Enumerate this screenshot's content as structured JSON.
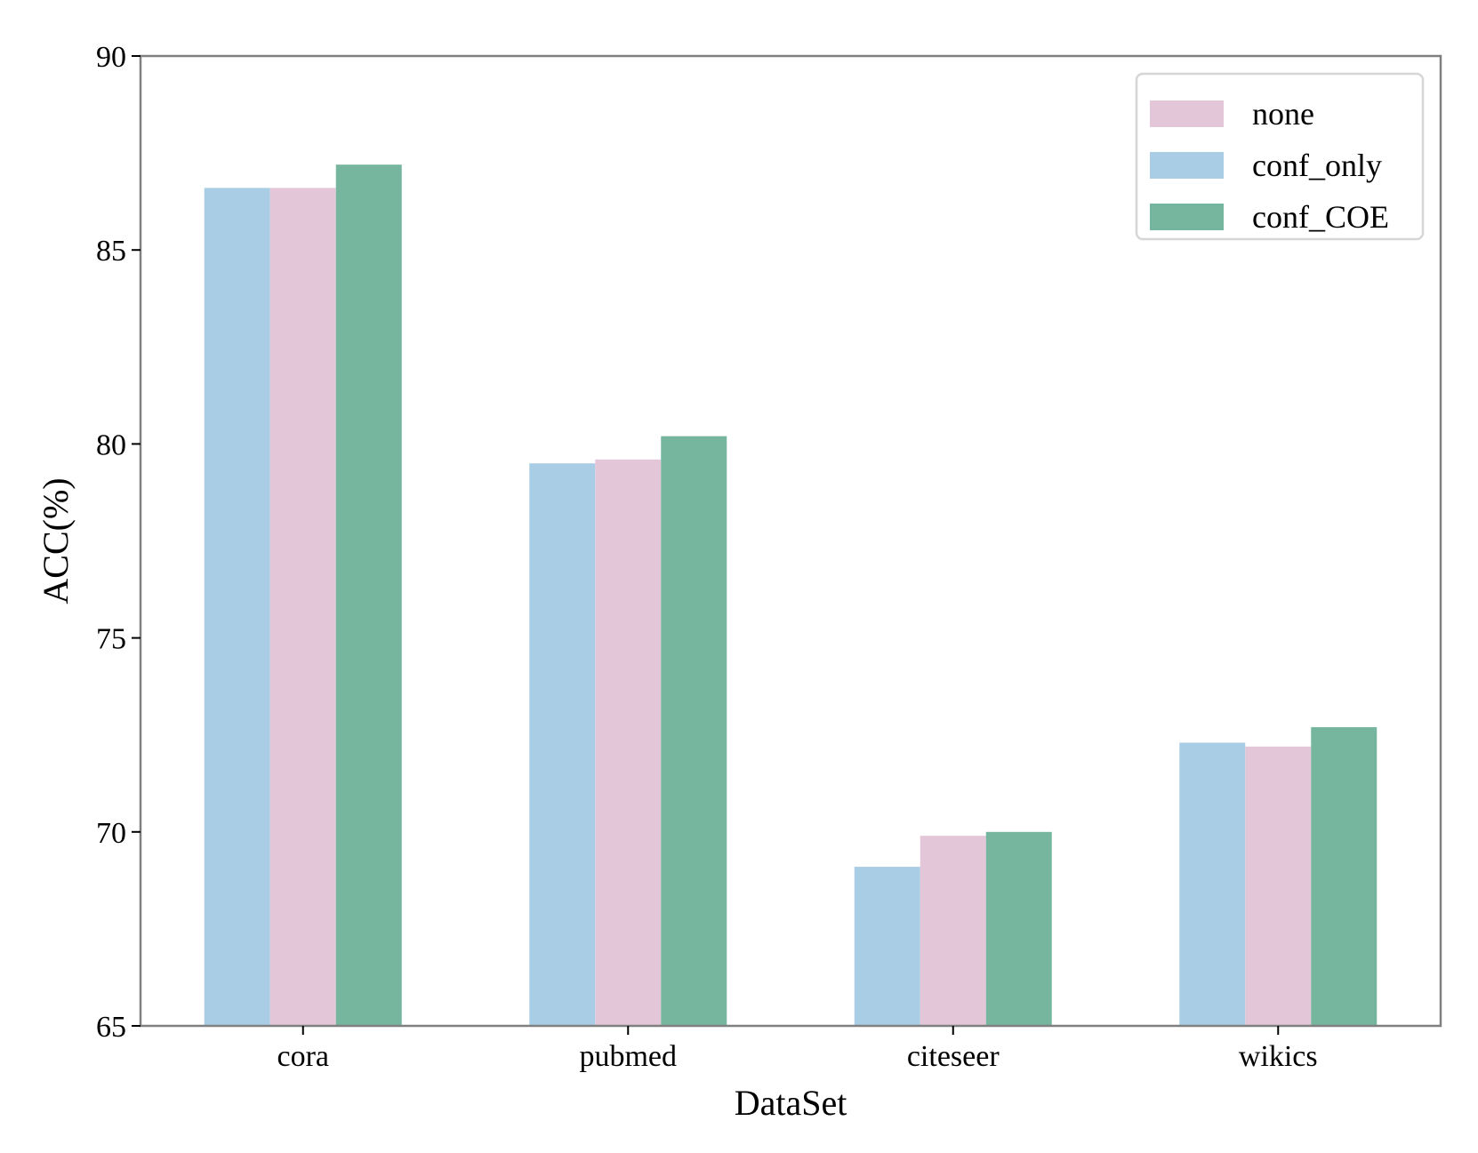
{
  "chart_data": {
    "type": "bar",
    "title": "",
    "xlabel": "DataSet",
    "ylabel": "ACC(%)",
    "ylim": [
      65,
      90
    ],
    "yticks": [
      65,
      70,
      75,
      80,
      85,
      90
    ],
    "grid": false,
    "legend_position": "top-right",
    "categories": [
      "cora",
      "pubmed",
      "citeseer",
      "wikics"
    ],
    "bar_order": [
      "conf_only",
      "none",
      "conf_COE"
    ],
    "legend_order": [
      "none",
      "conf_only",
      "conf_COE"
    ],
    "series": [
      {
        "name": "none",
        "color": "#e3c7d9",
        "values": [
          86.6,
          79.6,
          69.9,
          72.2
        ]
      },
      {
        "name": "conf_only",
        "color": "#a8cde4",
        "values": [
          86.6,
          79.5,
          69.1,
          72.3
        ]
      },
      {
        "name": "conf_COE",
        "color": "#76b69f",
        "values": [
          87.2,
          80.2,
          70.0,
          72.7
        ]
      }
    ],
    "frame_color": "#808080"
  }
}
